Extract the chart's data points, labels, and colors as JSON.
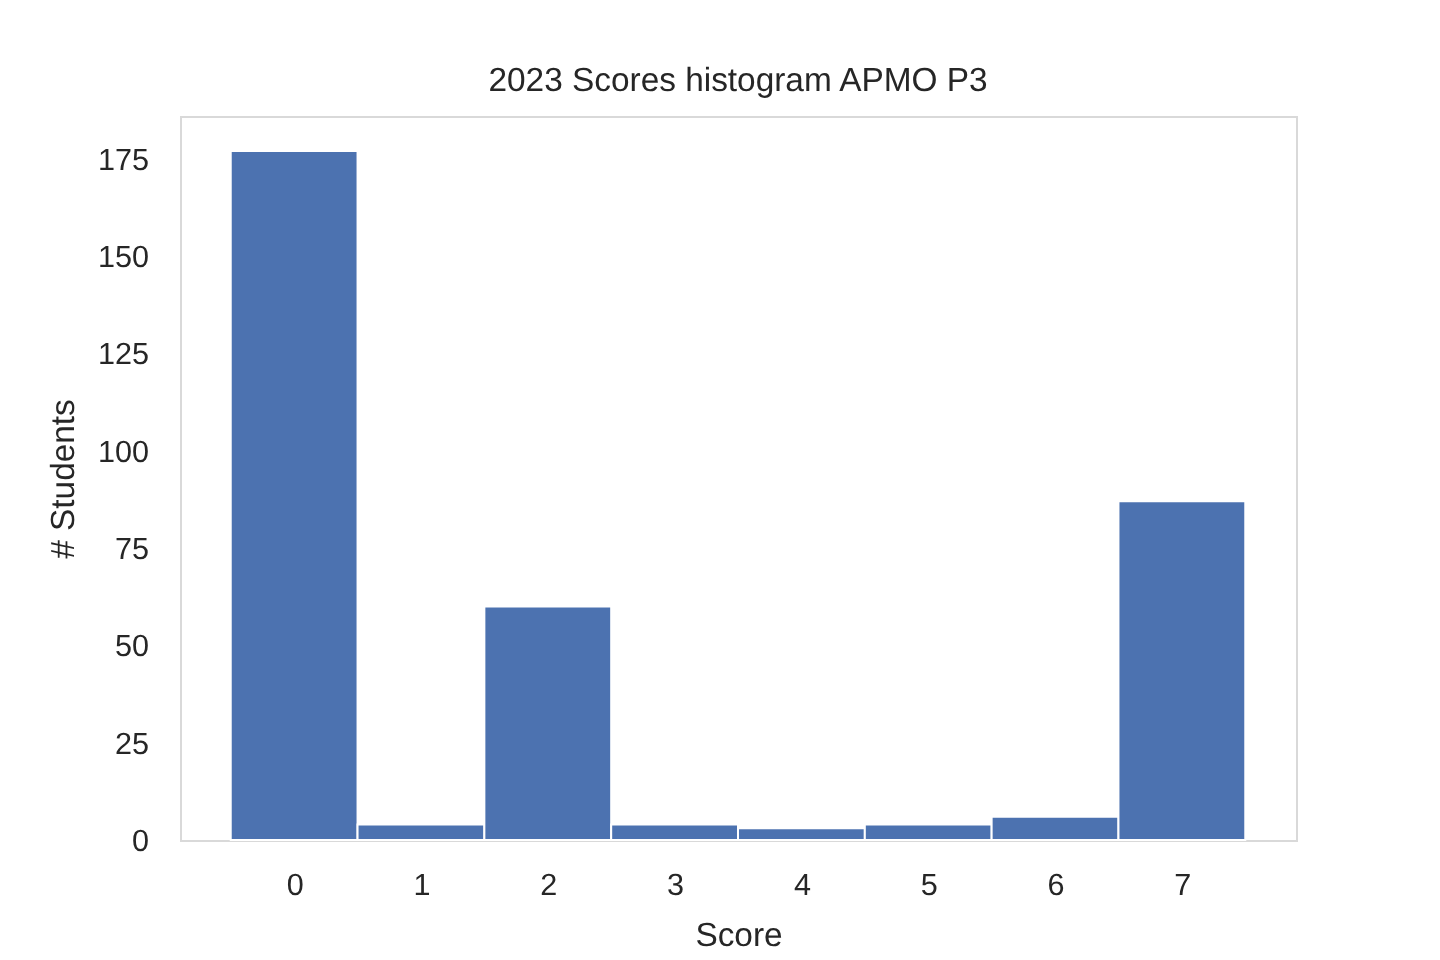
{
  "chart_data": {
    "type": "histogram",
    "title": "2023 Scores histogram APMO P3",
    "xlabel": "Score",
    "ylabel": "# Students",
    "bins": [
      -0.5,
      0.5,
      1.5,
      2.5,
      3.5,
      4.5,
      5.5,
      6.5,
      7.5
    ],
    "values": [
      177,
      4,
      60,
      4,
      3,
      4,
      6,
      87
    ],
    "color": "#4c72b0",
    "xlim": [
      -0.9,
      7.9
    ],
    "ylim": [
      0,
      186
    ],
    "xticks": [
      0,
      1,
      2,
      3,
      4,
      5,
      6,
      7
    ],
    "yticks": [
      0,
      25,
      50,
      75,
      100,
      125,
      150,
      175
    ],
    "grid": false
  }
}
